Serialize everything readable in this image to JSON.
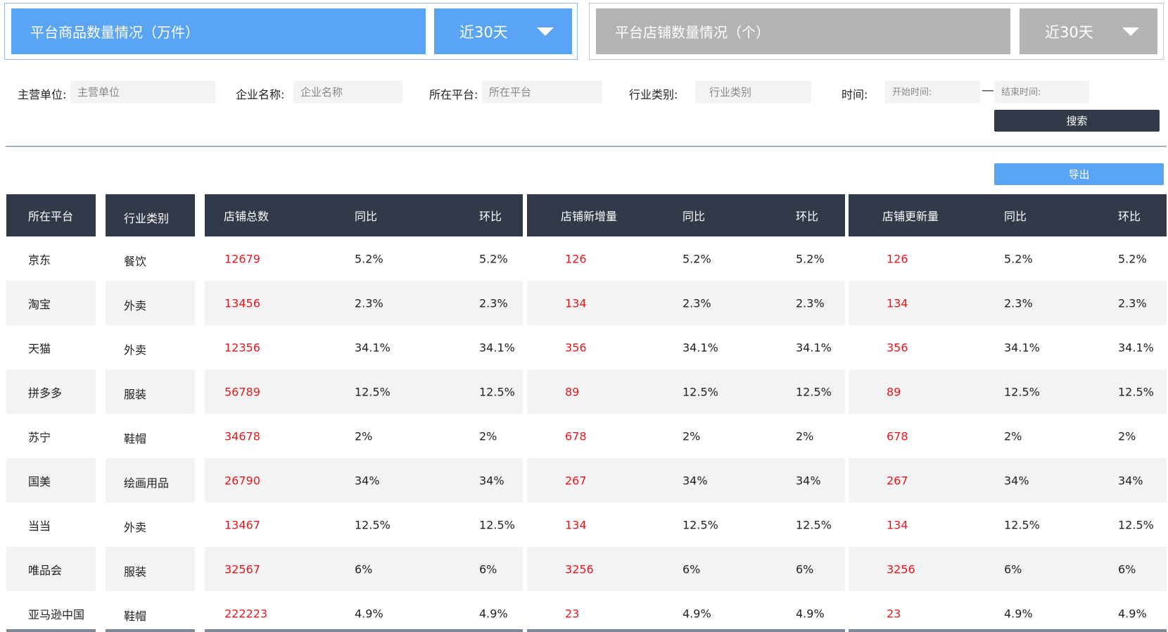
{
  "tabs": [
    {
      "title": "平台商品数量情况（万件）",
      "range": "近30天"
    },
    {
      "title": "平台店铺数量情况（个）",
      "range": "近30天"
    }
  ],
  "filters": {
    "unit_label": "主营单位:",
    "unit_placeholder": "主营单位",
    "company_label": "企业名称:",
    "company_placeholder": "企业名称",
    "platform_label": "所在平台:",
    "platform_placeholder": "所在平台",
    "industry_label": "行业类别:",
    "industry_placeholder": "行业类别",
    "time_label": "时间:",
    "start_placeholder": "开始时间:",
    "range_separator": "—",
    "end_placeholder": "结束时间:",
    "search_label": "搜索",
    "export_label": "导出"
  },
  "table": {
    "headers": {
      "platform": "所在平台",
      "industry": "行业类别",
      "total": "店铺总数",
      "total_yoy": "同比",
      "total_mom": "环比",
      "new": "店铺新增量",
      "new_yoy": "同比",
      "new_mom": "环比",
      "updated": "店铺更新量",
      "updated_yoy": "同比",
      "updated_mom": "环比"
    },
    "rows": [
      {
        "platform": "京东",
        "industry": "餐饮",
        "total": "12679",
        "total_yoy": "5.2%",
        "total_mom": "5.2%",
        "new": "126",
        "new_yoy": "5.2%",
        "new_mom": "5.2%",
        "updated": "126",
        "updated_yoy": "5.2%",
        "updated_mom": "5.2%"
      },
      {
        "platform": "淘宝",
        "industry": "外卖",
        "total": "13456",
        "total_yoy": "2.3%",
        "total_mom": "2.3%",
        "new": "134",
        "new_yoy": "2.3%",
        "new_mom": "2.3%",
        "updated": "134",
        "updated_yoy": "2.3%",
        "updated_mom": "2.3%"
      },
      {
        "platform": "天猫",
        "industry": "外卖",
        "total": "12356",
        "total_yoy": "34.1%",
        "total_mom": "34.1%",
        "new": "356",
        "new_yoy": "34.1%",
        "new_mom": "34.1%",
        "updated": "356",
        "updated_yoy": "34.1%",
        "updated_mom": "34.1%"
      },
      {
        "platform": "拼多多",
        "industry": "服装",
        "total": "56789",
        "total_yoy": "12.5%",
        "total_mom": "12.5%",
        "new": "89",
        "new_yoy": "12.5%",
        "new_mom": "12.5%",
        "updated": "89",
        "updated_yoy": "12.5%",
        "updated_mom": "12.5%"
      },
      {
        "platform": "苏宁",
        "industry": "鞋帽",
        "total": "34678",
        "total_yoy": "2%",
        "total_mom": "2%",
        "new": "678",
        "new_yoy": "2%",
        "new_mom": "2%",
        "updated": "678",
        "updated_yoy": "2%",
        "updated_mom": "2%"
      },
      {
        "platform": "国美",
        "industry": "绘画用品",
        "total": "26790",
        "total_yoy": "34%",
        "total_mom": "34%",
        "new": "267",
        "new_yoy": "34%",
        "new_mom": "34%",
        "updated": "267",
        "updated_yoy": "34%",
        "updated_mom": "34%"
      },
      {
        "platform": "当当",
        "industry": "外卖",
        "total": "13467",
        "total_yoy": "12.5%",
        "total_mom": "12.5%",
        "new": "134",
        "new_yoy": "12.5%",
        "new_mom": "12.5%",
        "updated": "134",
        "updated_yoy": "12.5%",
        "updated_mom": "12.5%"
      },
      {
        "platform": "唯品会",
        "industry": "服装",
        "total": "32567",
        "total_yoy": "6%",
        "total_mom": "6%",
        "new": "3256",
        "new_yoy": "6%",
        "new_mom": "6%",
        "updated": "3256",
        "updated_yoy": "6%",
        "updated_mom": "6%"
      },
      {
        "platform": "亚马逊中国",
        "industry": "鞋帽",
        "total": "222223",
        "total_yoy": "4.9%",
        "total_mom": "4.9%",
        "new": "23",
        "new_yoy": "4.9%",
        "new_mom": "4.9%",
        "updated": "23",
        "updated_yoy": "4.9%",
        "updated_mom": "4.9%"
      }
    ]
  },
  "colors": {
    "accent_blue": "#5aa4f5",
    "header_dark": "#323a4a",
    "inactive_gray": "#b3b3b3",
    "value_red": "#e8161b"
  },
  "icons": {
    "range_dropdown": "caret-down-icon"
  }
}
